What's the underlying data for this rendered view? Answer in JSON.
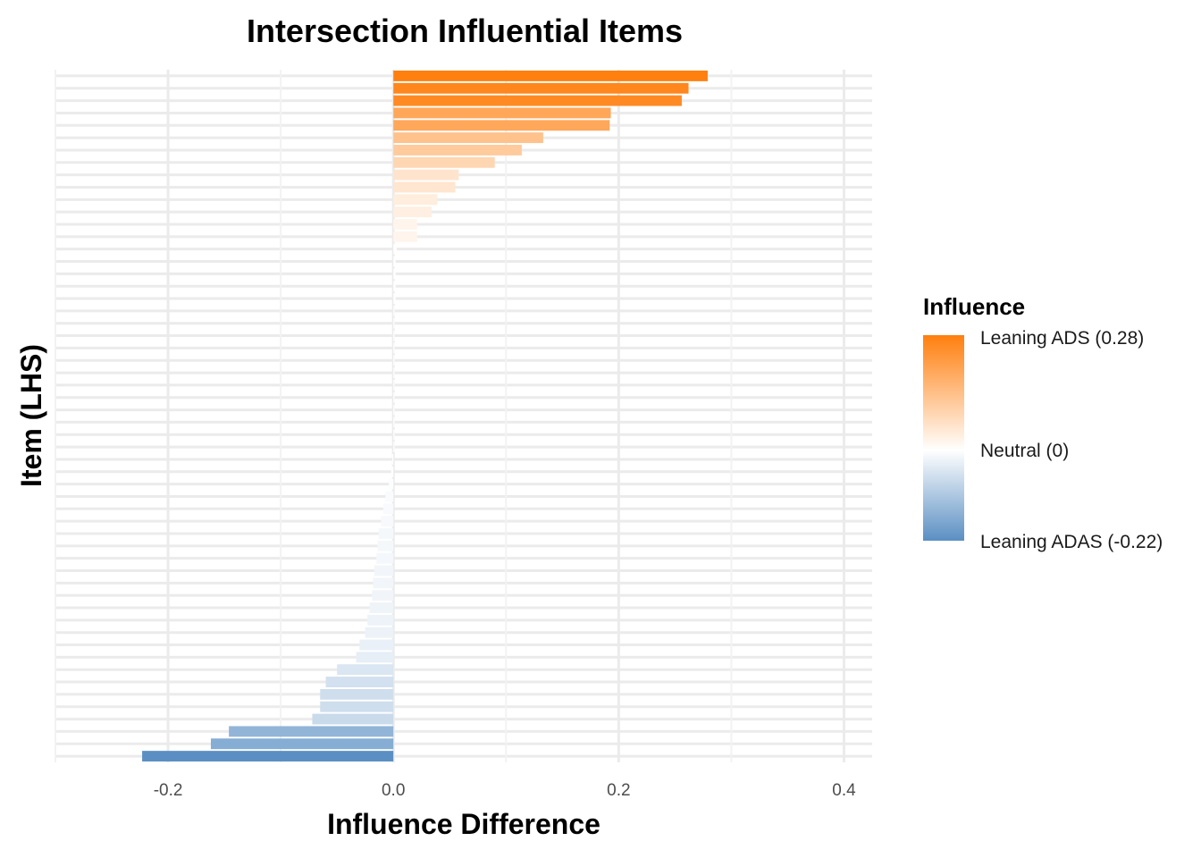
{
  "chart_data": {
    "type": "bar",
    "orientation": "horizontal",
    "title": "Intersection Influential Items",
    "xlabel": "Influence Difference",
    "ylabel": "Item (LHS)",
    "xlim": [
      -0.3,
      0.425
    ],
    "xticks": [
      -0.2,
      0.0,
      0.2,
      0.4
    ],
    "xtick_labels": [
      "-0.2",
      "0.0",
      "0.2",
      "0.4"
    ],
    "grid": true,
    "values": [
      0.279,
      0.262,
      0.256,
      0.193,
      0.192,
      0.133,
      0.114,
      0.09,
      0.058,
      0.055,
      0.039,
      0.034,
      0.021,
      0.021,
      0.003,
      0.002,
      0.002,
      0.002,
      0.002,
      0.001,
      0.001,
      0.001,
      0.001,
      0.001,
      0.001,
      0.001,
      0.001,
      0.001,
      0.001,
      0.001,
      0.001,
      -0.001,
      -0.002,
      -0.004,
      -0.007,
      -0.009,
      -0.011,
      -0.013,
      -0.014,
      -0.015,
      -0.017,
      -0.018,
      -0.019,
      -0.021,
      -0.023,
      -0.025,
      -0.03,
      -0.033,
      -0.05,
      -0.06,
      -0.065,
      -0.065,
      -0.072,
      -0.146,
      -0.162,
      -0.223
    ],
    "legend": {
      "title": "Influence",
      "position": "right",
      "high_label": "Leaning ADS (0.28)",
      "mid_label": "Neutral (0)",
      "low_label": "Leaning ADAS (-0.22)",
      "high_color": "#ff7f0e",
      "mid_color": "#ffffff",
      "low_color": "#5b8fc3",
      "high_value": 0.28,
      "low_value": -0.22
    }
  }
}
